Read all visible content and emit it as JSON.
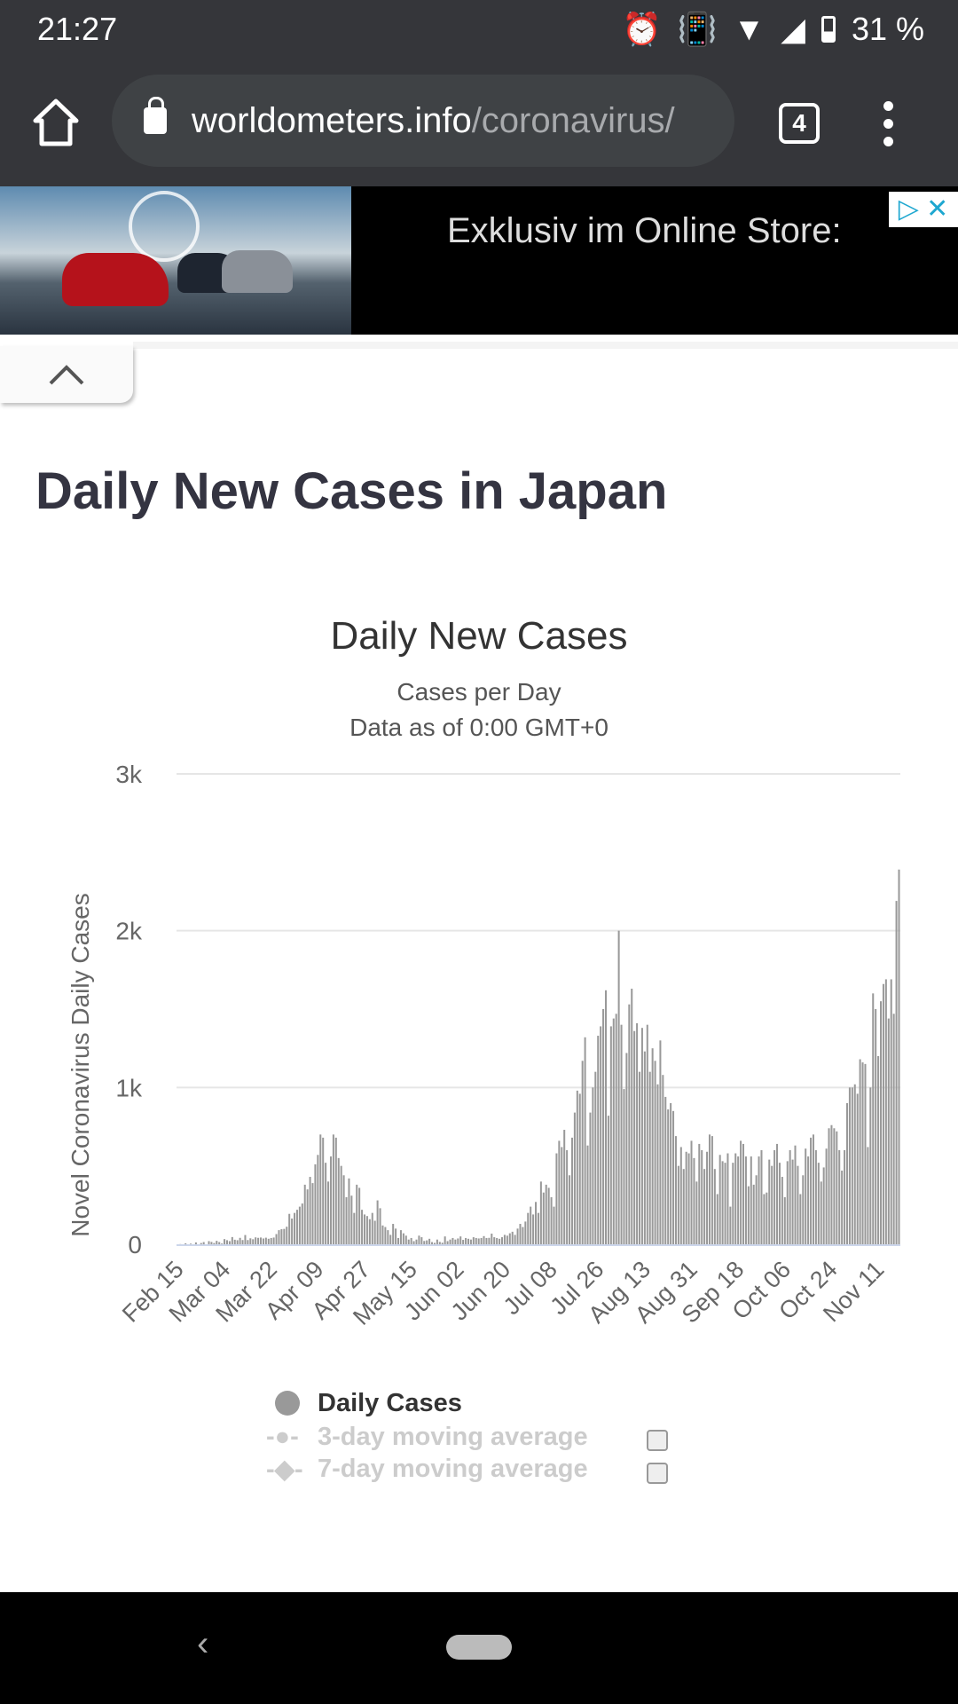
{
  "status_bar": {
    "time": "21:27",
    "battery": "31 %"
  },
  "browser": {
    "url_domain": "worldometers.info",
    "url_path": "/coronavirus/",
    "tab_count": "4"
  },
  "ad": {
    "text": "Exklusiv im Online Store:"
  },
  "page": {
    "title": "Daily New Cases in Japan"
  },
  "chart_data": {
    "type": "bar",
    "title": "Daily New Cases",
    "subtitle": "Cases per Day",
    "subtitle2": "Data as of 0:00 GMT+0",
    "ylabel": "Novel Coronavirus Daily Cases",
    "xlabel": "",
    "ylim": [
      0,
      3000
    ],
    "yticks": [
      {
        "v": 0,
        "label": "0"
      },
      {
        "v": 1000,
        "label": "1k"
      },
      {
        "v": 2000,
        "label": "2k"
      },
      {
        "v": 3000,
        "label": "3k"
      }
    ],
    "start_date": "Feb 15",
    "xtick_labels": [
      "Feb 15",
      "Mar 04",
      "Mar 22",
      "Apr 09",
      "Apr 27",
      "May 15",
      "Jun 02",
      "Jun 20",
      "Jul 08",
      "Jul 26",
      "Aug 13",
      "Aug 31",
      "Sep 18",
      "Oct 06",
      "Oct 24",
      "Nov 11"
    ],
    "xtick_interval_days": 18,
    "grid": true,
    "bar_color": "#999999",
    "legend": {
      "placement": "bottom",
      "items": [
        {
          "label": "Daily Cases",
          "active": true
        },
        {
          "label": "3-day moving average",
          "active": false
        },
        {
          "label": "7-day moving average",
          "active": false
        }
      ]
    },
    "values": [
      0,
      1,
      0,
      6,
      0,
      4,
      0,
      12,
      0,
      8,
      14,
      0,
      20,
      15,
      8,
      22,
      14,
      5,
      33,
      26,
      20,
      46,
      29,
      26,
      41,
      27,
      59,
      27,
      38,
      32,
      44,
      41,
      43,
      37,
      42,
      35,
      40,
      43,
      65,
      90,
      96,
      98,
      112,
      194,
      164,
      200,
      220,
      240,
      260,
      380,
      350,
      430,
      390,
      510,
      570,
      700,
      680,
      520,
      400,
      560,
      700,
      680,
      550,
      500,
      440,
      300,
      420,
      310,
      200,
      380,
      360,
      220,
      190,
      180,
      160,
      200,
      150,
      280,
      230,
      120,
      110,
      90,
      60,
      130,
      100,
      40,
      90,
      70,
      55,
      30,
      40,
      20,
      30,
      55,
      45,
      21,
      25,
      35,
      14,
      9,
      30,
      15,
      10,
      50,
      20,
      30,
      40,
      30,
      37,
      50,
      28,
      40,
      35,
      30,
      45,
      40,
      37,
      40,
      52,
      40,
      41,
      68,
      45,
      40,
      35,
      45,
      60,
      55,
      70,
      80,
      60,
      100,
      130,
      110,
      145,
      200,
      240,
      190,
      270,
      200,
      400,
      330,
      380,
      360,
      300,
      240,
      580,
      660,
      620,
      730,
      600,
      440,
      680,
      840,
      980,
      960,
      1170,
      1320,
      630,
      840,
      1000,
      1100,
      1330,
      1390,
      1500,
      1620,
      820,
      1390,
      1440,
      1470,
      2000,
      1400,
      990,
      1220,
      1530,
      1630,
      1360,
      1410,
      1100,
      1380,
      1230,
      1400,
      1100,
      1250,
      1170,
      1020,
      1300,
      1080,
      940,
      860,
      900,
      850,
      690,
      500,
      620,
      480,
      590,
      580,
      660,
      550,
      400,
      640,
      600,
      480,
      590,
      700,
      690,
      480,
      320,
      570,
      530,
      520,
      580,
      240,
      520,
      580,
      560,
      660,
      640,
      560,
      370,
      560,
      380,
      440,
      560,
      600,
      320,
      330,
      540,
      500,
      600,
      640,
      520,
      430,
      300,
      530,
      600,
      540,
      630,
      500,
      320,
      440,
      610,
      560,
      680,
      700,
      600,
      520,
      400,
      490,
      610,
      740,
      760,
      740,
      720,
      600,
      470,
      600,
      900,
      1000,
      1000,
      1020,
      960,
      1180,
      1160,
      1150,
      620,
      1000,
      1600,
      1500,
      1200,
      1550,
      1660,
      1690,
      1440,
      1690,
      1470,
      2190,
      2390
    ]
  }
}
